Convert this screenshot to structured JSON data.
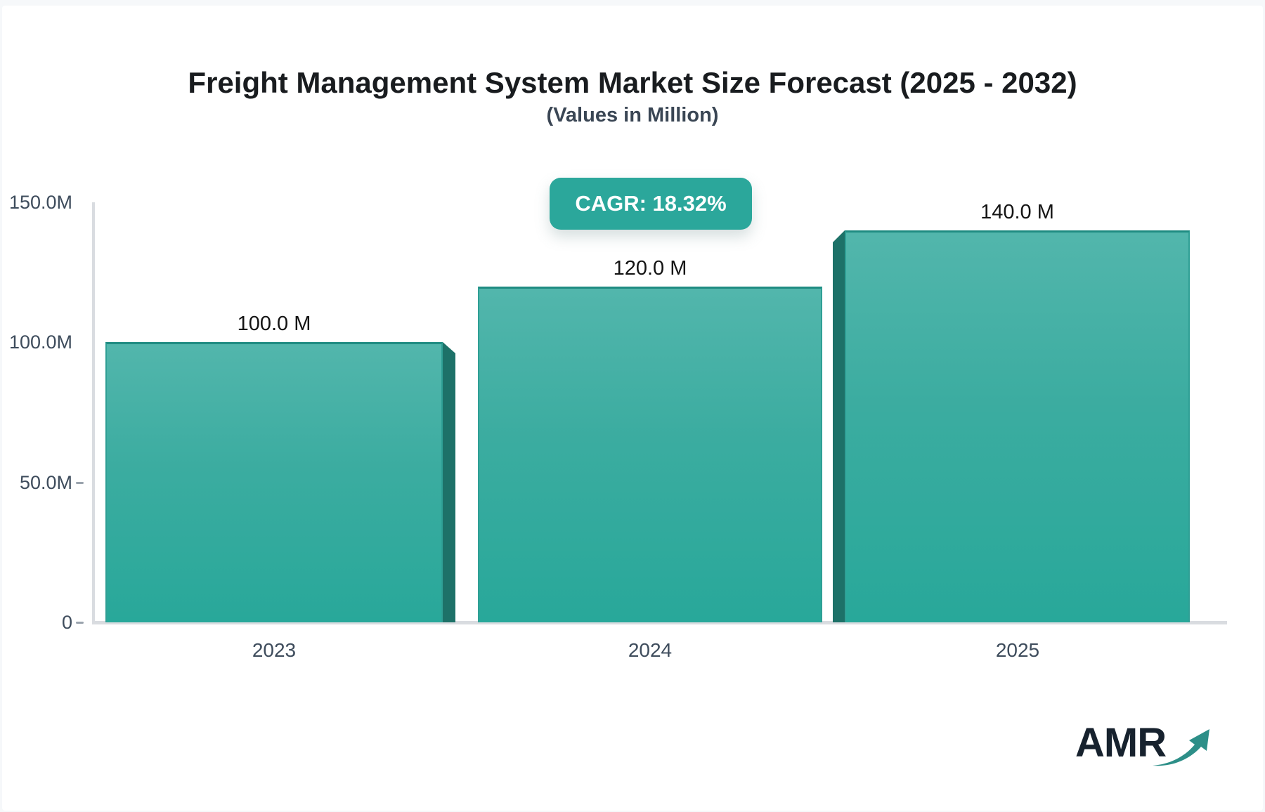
{
  "header": {
    "title": "Freight Management System Market Size Forecast (2025 - 2032)",
    "subtitle": "(Values in Million)",
    "cagr_label": "CAGR: 18.32%"
  },
  "chart_data": {
    "type": "bar",
    "title": "Freight Management System Market Size Forecast (2025 - 2032)",
    "subtitle": "(Values in Million)",
    "unit": "Million",
    "categories": [
      "2023",
      "2024",
      "2025"
    ],
    "values": [
      100,
      120,
      140
    ],
    "bar_labels": [
      "100.0 M",
      "120.0 M",
      "140.0 M"
    ],
    "y_ticks": [
      {
        "label": "150.0M",
        "value": 150
      },
      {
        "label": "100.0M",
        "value": 100
      },
      {
        "label": "50.0M",
        "value": 50
      },
      {
        "label": "0",
        "value": 0
      }
    ],
    "ylim": [
      0,
      150
    ],
    "grid": false,
    "legend": "none",
    "annotations": [
      "CAGR: 18.32%"
    ],
    "colors": {
      "bar_gradient_top": "#52b6ac",
      "bar_gradient_bottom": "#28a89a",
      "bar_edge": "#1f8c82",
      "bar_bevel": "#1d7168",
      "axis_line": "#d9dce0",
      "badge_background": "#2ba79b",
      "badge_text": "#ffffff",
      "label_text": "#3e4c5c"
    }
  },
  "footer": {
    "logo_text": "AMR"
  }
}
